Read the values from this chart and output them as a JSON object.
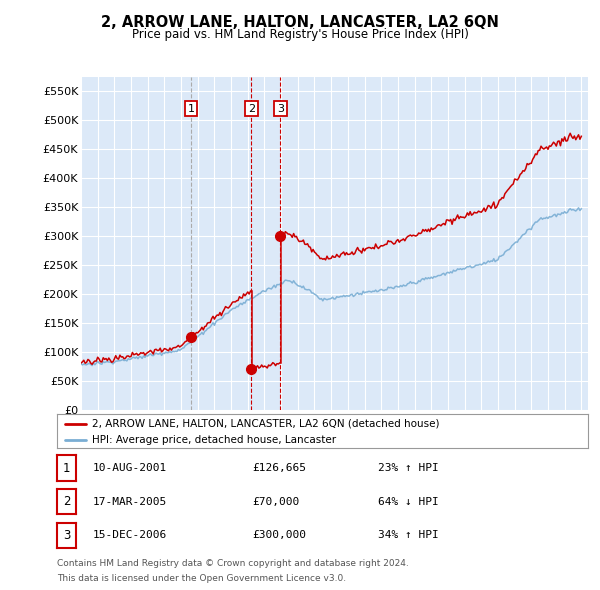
{
  "title": "2, ARROW LANE, HALTON, LANCASTER, LA2 6QN",
  "subtitle": "Price paid vs. HM Land Registry's House Price Index (HPI)",
  "legend_label_red": "2, ARROW LANE, HALTON, LANCASTER, LA2 6QN (detached house)",
  "legend_label_blue": "HPI: Average price, detached house, Lancaster",
  "sale_years": [
    2001.6,
    2005.21,
    2006.96
  ],
  "sale_prices": [
    126665,
    70000,
    300000
  ],
  "footer_line1": "Contains HM Land Registry data © Crown copyright and database right 2024.",
  "footer_line2": "This data is licensed under the Open Government Licence v3.0.",
  "background_color": "#ffffff",
  "plot_bg_color": "#dce9f8",
  "grid_color": "#ffffff",
  "red_color": "#cc0000",
  "blue_color": "#7aaed4",
  "ylim": [
    0,
    575000
  ],
  "yticks": [
    0,
    50000,
    100000,
    150000,
    200000,
    250000,
    300000,
    350000,
    400000,
    450000,
    500000,
    550000
  ],
  "ytick_labels": [
    "£0",
    "£50K",
    "£100K",
    "£150K",
    "£200K",
    "£250K",
    "£300K",
    "£350K",
    "£400K",
    "£450K",
    "£500K",
    "£550K"
  ],
  "table_rows": [
    {
      "num": "1",
      "date": "10-AUG-2001",
      "price": "£126,665",
      "pct": "23% ↑ HPI"
    },
    {
      "num": "2",
      "date": "17-MAR-2005",
      "price": "£70,000",
      "pct": "64% ↓ HPI"
    },
    {
      "num": "3",
      "date": "15-DEC-2006",
      "price": "£300,000",
      "pct": "34% ↑ HPI"
    }
  ]
}
